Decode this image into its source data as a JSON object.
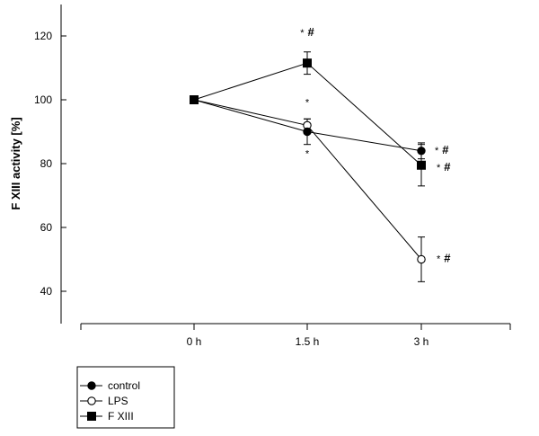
{
  "chart_data": {
    "type": "line",
    "title": "",
    "xlabel": "",
    "ylabel": "F XIII  activity [%]",
    "categories": [
      "0 h",
      "1.5 h",
      "3 h"
    ],
    "ylim": [
      35,
      125
    ],
    "yticks": [
      40,
      60,
      80,
      100,
      120
    ],
    "grid": false,
    "legend_position": "bottom-left",
    "series": [
      {
        "name": "control",
        "marker": "filled-circle",
        "values": [
          100,
          90,
          84
        ],
        "errors": [
          0,
          4,
          2.5
        ],
        "annotations": [
          "",
          "*",
          "* #"
        ]
      },
      {
        "name": "LPS",
        "marker": "open-circle",
        "values": [
          100,
          92,
          50
        ],
        "errors": [
          0,
          2,
          7
        ],
        "annotations": [
          "",
          "*",
          "* #"
        ]
      },
      {
        "name": "F XIII",
        "marker": "filled-square",
        "values": [
          100,
          111.5,
          79.5
        ],
        "errors": [
          0,
          3.5,
          6.5
        ],
        "annotations": [
          "",
          "* #",
          "* #"
        ]
      }
    ],
    "colors": {
      "line": "#000000",
      "marker_fill": "#000000",
      "open_marker_fill": "#ffffff"
    }
  }
}
